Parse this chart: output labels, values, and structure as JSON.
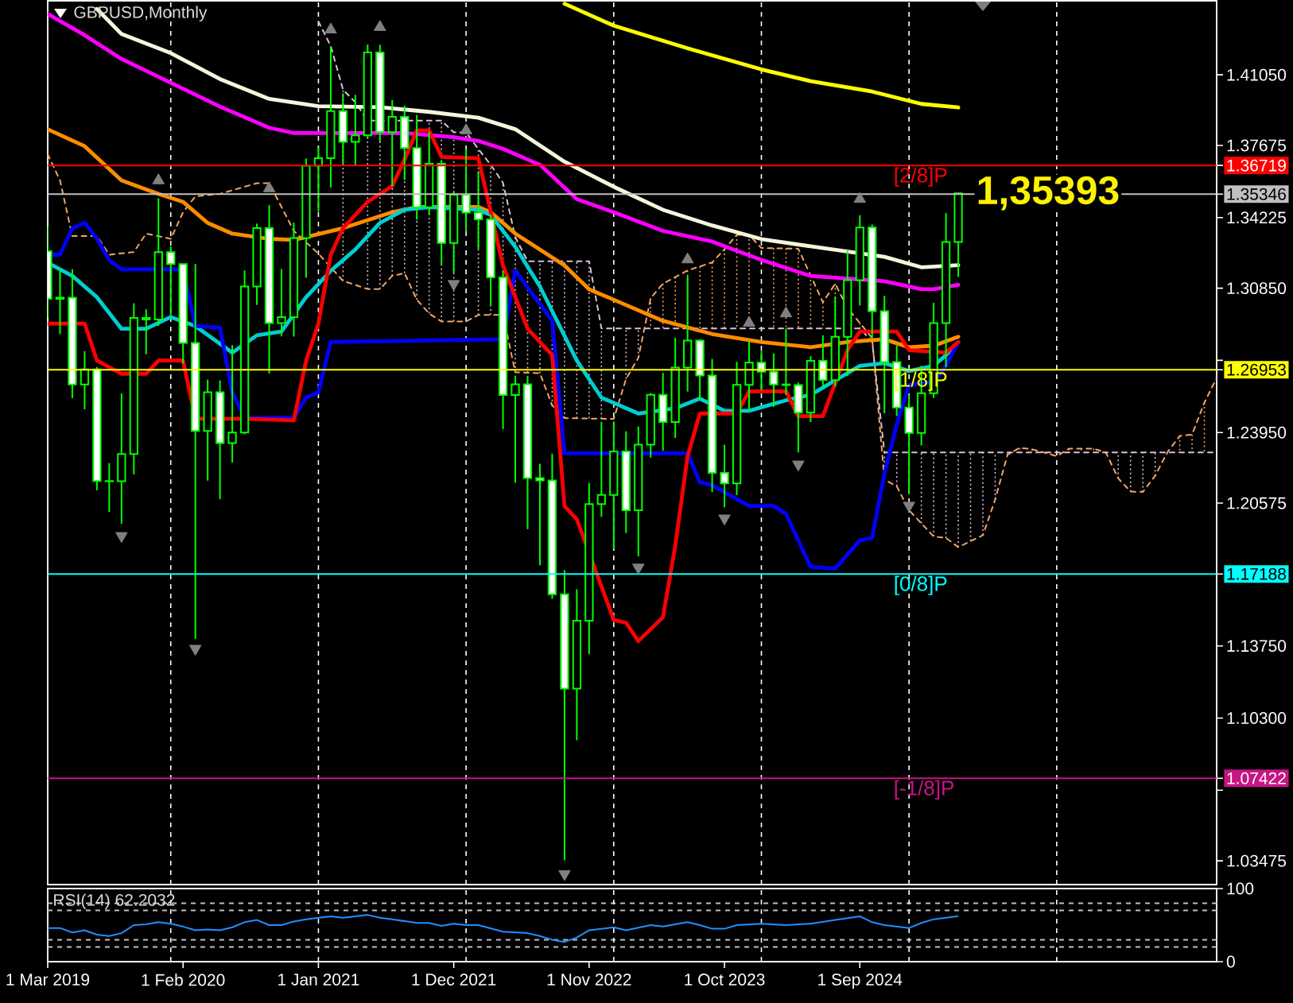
{
  "chart_data": [
    {
      "type": "candlestick",
      "title": "GBPUSD,Monthly",
      "x": [
        "2019-03",
        "2019-04",
        "2019-05",
        "2019-06",
        "2019-07",
        "2019-08",
        "2019-09",
        "2019-10",
        "2019-11",
        "2019-12",
        "2020-01",
        "2020-02",
        "2020-03",
        "2020-04",
        "2020-05",
        "2020-06",
        "2020-07",
        "2020-08",
        "2020-09",
        "2020-10",
        "2020-11",
        "2020-12",
        "2021-01",
        "2021-02",
        "2021-03",
        "2021-04",
        "2021-05",
        "2021-06",
        "2021-07",
        "2021-08",
        "2021-09",
        "2021-10",
        "2021-11",
        "2021-12",
        "2022-01",
        "2022-02",
        "2022-03",
        "2022-04",
        "2022-05",
        "2022-06",
        "2022-07",
        "2022-08",
        "2022-09",
        "2022-10",
        "2022-11",
        "2022-12",
        "2023-01",
        "2023-02",
        "2023-03",
        "2023-04",
        "2023-05",
        "2023-06",
        "2023-07",
        "2023-08",
        "2023-09",
        "2023-10",
        "2023-11",
        "2023-12",
        "2024-01",
        "2024-02",
        "2024-03",
        "2024-04",
        "2024-05",
        "2024-06",
        "2024-07",
        "2024-08",
        "2024-09",
        "2024-10",
        "2024-11",
        "2024-12",
        "2025-01",
        "2025-02",
        "2025-03",
        "2025-04",
        "2025-05"
      ],
      "ohlc": [
        [
          1.3262,
          1.3382,
          1.2945,
          1.3034
        ],
        [
          1.3034,
          1.3177,
          1.2866,
          1.304
        ],
        [
          1.304,
          1.3176,
          1.2559,
          1.2625
        ],
        [
          1.2625,
          1.2784,
          1.2506,
          1.2697
        ],
        [
          1.2697,
          1.2708,
          1.2119,
          1.2163
        ],
        [
          1.2163,
          1.2249,
          1.2015,
          1.2162
        ],
        [
          1.2162,
          1.2582,
          1.1959,
          1.2292
        ],
        [
          1.2292,
          1.3013,
          1.2195,
          1.2943
        ],
        [
          1.2943,
          1.2985,
          1.2769,
          1.2935
        ],
        [
          1.2935,
          1.3515,
          1.2905,
          1.3257
        ],
        [
          1.3257,
          1.3285,
          1.2954,
          1.32
        ],
        [
          1.32,
          1.32,
          1.2725,
          1.2823
        ],
        [
          1.2823,
          1.32,
          1.1409,
          1.2403
        ],
        [
          1.2403,
          1.2648,
          1.2165,
          1.2588
        ],
        [
          1.2588,
          1.2644,
          1.2076,
          1.2345
        ],
        [
          1.2345,
          1.2813,
          1.2252,
          1.2395
        ],
        [
          1.2395,
          1.317,
          1.2387,
          1.3093
        ],
        [
          1.3093,
          1.3394,
          1.3005,
          1.3372
        ],
        [
          1.3372,
          1.3482,
          1.2676,
          1.2918
        ],
        [
          1.2918,
          1.3177,
          1.2855,
          1.2947
        ],
        [
          1.2947,
          1.3399,
          1.2854,
          1.3325
        ],
        [
          1.3325,
          1.3705,
          1.3135,
          1.3671
        ],
        [
          1.3671,
          1.3759,
          1.3451,
          1.3707
        ],
        [
          1.3707,
          1.4241,
          1.3566,
          1.3932
        ],
        [
          1.3932,
          1.4017,
          1.3669,
          1.3785
        ],
        [
          1.3785,
          1.4009,
          1.367,
          1.3816
        ],
        [
          1.3816,
          1.425,
          1.3801,
          1.4212
        ],
        [
          1.4212,
          1.4249,
          1.3787,
          1.3831
        ],
        [
          1.3831,
          1.3984,
          1.3572,
          1.3904
        ],
        [
          1.3904,
          1.3958,
          1.3602,
          1.3755
        ],
        [
          1.3755,
          1.3913,
          1.3412,
          1.3472
        ],
        [
          1.3472,
          1.3834,
          1.3434,
          1.368
        ],
        [
          1.368,
          1.3698,
          1.3195,
          1.3301
        ],
        [
          1.3301,
          1.3548,
          1.316,
          1.3532
        ],
        [
          1.3532,
          1.3749,
          1.3357,
          1.3446
        ],
        [
          1.3446,
          1.3644,
          1.3273,
          1.3414
        ],
        [
          1.3414,
          1.3437,
          1.3,
          1.3137
        ],
        [
          1.3137,
          1.3167,
          1.2411,
          1.2574
        ],
        [
          1.2574,
          1.2667,
          1.2155,
          1.2626
        ],
        [
          1.2626,
          1.2666,
          1.1933,
          1.2177
        ],
        [
          1.2177,
          1.2246,
          1.176,
          1.2166
        ],
        [
          1.2166,
          1.2294,
          1.16,
          1.1622
        ],
        [
          1.1622,
          1.1738,
          1.035,
          1.1171
        ],
        [
          1.1171,
          1.1646,
          1.0924,
          1.1495
        ],
        [
          1.1495,
          1.2154,
          1.1335,
          1.2053
        ],
        [
          1.2053,
          1.2446,
          1.1992,
          1.2097
        ],
        [
          1.2097,
          1.2448,
          1.1841,
          1.2305
        ],
        [
          1.2305,
          1.2401,
          1.1915,
          1.2024
        ],
        [
          1.2024,
          1.2424,
          1.1803,
          1.2337
        ],
        [
          1.2337,
          1.2584,
          1.2275,
          1.2575
        ],
        [
          1.2575,
          1.268,
          1.2308,
          1.2445
        ],
        [
          1.2445,
          1.2848,
          1.2369,
          1.2706
        ],
        [
          1.2706,
          1.3143,
          1.2591,
          1.2835
        ],
        [
          1.2835,
          1.2841,
          1.2548,
          1.2668
        ],
        [
          1.2668,
          1.2747,
          1.211,
          1.2202
        ],
        [
          1.2202,
          1.2337,
          1.2037,
          1.2152
        ],
        [
          1.2152,
          1.2733,
          1.2096,
          1.2623
        ],
        [
          1.2623,
          1.2828,
          1.25,
          1.2729
        ],
        [
          1.2729,
          1.2786,
          1.2597,
          1.2686
        ],
        [
          1.2686,
          1.2773,
          1.2518,
          1.2625
        ],
        [
          1.2625,
          1.2893,
          1.2575,
          1.2622
        ],
        [
          1.2622,
          1.2634,
          1.23,
          1.249
        ],
        [
          1.249,
          1.276,
          1.2445,
          1.2738
        ],
        [
          1.2738,
          1.286,
          1.2612,
          1.2646
        ],
        [
          1.2646,
          1.3044,
          1.2615,
          1.2853
        ],
        [
          1.2853,
          1.3266,
          1.2665,
          1.3123
        ],
        [
          1.3123,
          1.3434,
          1.3002,
          1.3375
        ],
        [
          1.3375,
          1.339,
          1.2844,
          1.2975
        ],
        [
          1.2975,
          1.3048,
          1.2487,
          1.2732
        ],
        [
          1.2732,
          1.2811,
          1.2474,
          1.2515
        ],
        [
          1.2515,
          1.2575,
          1.21,
          1.2393
        ],
        [
          1.2393,
          1.2715,
          1.2333,
          1.2583
        ],
        [
          1.2583,
          1.3015,
          1.256,
          1.2918
        ],
        [
          1.2918,
          1.3444,
          1.2708,
          1.3306
        ],
        [
          1.3306,
          1.3539,
          1.3139,
          1.3539
        ]
      ],
      "color": "#00ff00",
      "colors": [
        "#ffffff",
        "#000000",
        "#ffffff",
        "#000000",
        "#ffffff",
        "#ffffff",
        "#000000",
        "#000000",
        "#ffffff",
        "#000000",
        "#ffffff",
        "#ffffff",
        "#ffffff",
        "#000000",
        "#ffffff",
        "#000000",
        "#000000",
        "#000000",
        "#ffffff",
        "#000000",
        "#000000",
        "#000000",
        "#000000",
        "#000000",
        "#ffffff",
        "#000000",
        "#000000",
        "#ffffff",
        "#000000",
        "#ffffff",
        "#ffffff",
        "#000000",
        "#ffffff",
        "#000000",
        "#ffffff",
        "#ffffff",
        "#ffffff",
        "#ffffff",
        "#000000",
        "#ffffff",
        "#ffffff",
        "#ffffff",
        "#ffffff",
        "#000000",
        "#000000",
        "#000000",
        "#000000",
        "#ffffff",
        "#000000",
        "#000000",
        "#ffffff",
        "#000000",
        "#000000",
        "#ffffff",
        "#ffffff",
        "#ffffff",
        "#000000",
        "#000000",
        "#ffffff",
        "#ffffff",
        "#ffffff",
        "#ffffff",
        "#000000",
        "#ffffff",
        "#000000",
        "#000000",
        "#000000",
        "#ffffff",
        "#ffffff",
        "#ffffff",
        "#ffffff",
        "#000000",
        "#000000",
        "#000000",
        "#000000"
      ],
      "xlim": [
        "2019-03",
        "2027-02"
      ],
      "ylim": [
        1.0234,
        1.4459
      ],
      "yticks": [
        {
          "value": 1.4105,
          "label": "1.41050"
        },
        {
          "value": 1.37675,
          "label": "1.37675"
        },
        {
          "value": 1.36719,
          "label": "1.36719"
        },
        {
          "value": 1.35346,
          "label": "1.35346"
        },
        {
          "value": 1.34225,
          "label": "1.34225"
        },
        {
          "value": 1.3085,
          "label": "1.30850"
        },
        {
          "value": 1.274,
          "label": null
        },
        {
          "value": 1.26953,
          "label": "1.26953"
        },
        {
          "value": 1.2395,
          "label": "1.23950"
        },
        {
          "value": 1.20575,
          "label": "1.20575"
        },
        {
          "value": 1.17188,
          "label": "1.17188"
        },
        {
          "value": 1.1375,
          "label": "1.13750"
        },
        {
          "value": 1.103,
          "label": "1.10300"
        },
        {
          "value": 1.07422,
          "label": "1.07422"
        },
        {
          "value": 1.0685,
          "label": null
        },
        {
          "value": 1.03475,
          "label": "1.03475"
        }
      ],
      "tick_labels": "y",
      "series": [
        {
          "type": "line",
          "color": "#f4a460",
          "line_style": "dashed",
          "x": [
            "2019-03",
            "2019-04",
            "2019-05",
            "2019-07",
            "2019-08",
            "2019-10",
            "2019-11",
            "2020-01",
            "2020-02",
            "2020-03",
            "2020-05",
            "2020-08",
            "2020-09",
            "2020-10",
            "2020-11",
            "2021-01",
            "2021-03",
            "2021-05",
            "2021-06",
            "2021-07",
            "2021-08",
            "2021-09",
            "2021-10",
            "2021-11",
            "2021-12",
            "2022-01",
            "2022-02",
            "2022-03",
            "2022-04",
            "2022-05",
            "2022-06",
            "2022-07",
            "2022-08",
            "2022-09",
            "2022-10",
            "2022-11",
            "2022-12",
            "2023-01",
            "2023-02",
            "2023-03",
            "2023-04",
            "2023-05",
            "2023-06",
            "2023-07",
            "2023-08",
            "2023-09",
            "2023-10",
            "2023-11",
            "2023-12",
            "2024-01",
            "2024-02",
            "2024-03",
            "2024-04",
            "2024-05",
            "2024-06",
            "2024-07",
            "2024-08",
            "2024-09",
            "2024-10",
            "2024-11",
            "2024-12",
            "2025-01",
            "2025-02",
            "2025-03",
            "2025-04",
            "2025-05",
            "2025-06",
            "2025-07",
            "2025-08",
            "2025-09",
            "2025-10",
            "2025-11",
            "2025-12",
            "2026-01",
            "2026-02",
            "2026-03",
            "2026-04",
            "2026-05",
            "2026-06",
            "2026-07",
            "2026-08",
            "2026-09",
            "2026-10",
            "2026-11",
            "2026-12",
            "2027-01",
            "2027-02"
          ],
          "values": [
            1.3726,
            1.36,
            1.3334,
            1.3334,
            1.3245,
            1.3258,
            1.3346,
            1.3321,
            1.3448,
            1.3524,
            1.3536,
            1.3587,
            1.3587,
            1.3473,
            1.3359,
            1.325,
            1.312,
            1.3081,
            1.3081,
            1.3144,
            1.3157,
            1.303,
            1.2964,
            1.2926,
            1.2926,
            1.2926,
            1.2957,
            1.2957,
            1.2957,
            1.2683,
            1.2681,
            1.2679,
            1.2524,
            1.2464,
            1.2463,
            1.2462,
            1.2461,
            1.246,
            1.2651,
            1.2752,
            1.3037,
            1.3107,
            1.3138,
            1.317,
            1.3189,
            1.3208,
            1.3271,
            1.334,
            1.334,
            1.3277,
            1.3276,
            1.3275,
            1.3274,
            1.3146,
            1.3018,
            1.3106,
            1.299,
            1.2919,
            1.2847,
            1.217,
            1.2138,
            1.2024,
            1.1961,
            1.1898,
            1.1891,
            1.1847,
            1.1876,
            1.1904,
            1.2075,
            1.2289,
            1.2322,
            1.2315,
            1.2299,
            1.2282,
            1.2318,
            1.2318,
            1.2318,
            1.2299,
            1.2176,
            1.2113,
            1.2111,
            1.2188,
            1.2301,
            1.2379,
            1.2385,
            1.2538,
            1.2656
          ]
        },
        {
          "type": "line",
          "color": "#d8bfd8",
          "line_style": "dashed",
          "x": [
            "2021-01",
            "2021-02",
            "2021-03",
            "2021-04",
            "2021-05",
            "2021-06",
            "2021-07",
            "2021-08",
            "2021-09",
            "2021-10",
            "2021-11",
            "2021-12",
            "2022-01",
            "2022-02",
            "2022-03",
            "2022-04",
            "2022-05",
            "2022-06",
            "2022-07",
            "2022-08",
            "2022-09",
            "2022-10",
            "2022-11",
            "2022-12",
            "2023-01",
            "2023-02",
            "2023-03",
            "2023-04",
            "2023-05",
            "2023-06",
            "2023-07",
            "2023-08",
            "2023-09",
            "2023-10",
            "2023-11",
            "2023-12",
            "2024-01",
            "2024-02",
            "2024-03",
            "2024-04",
            "2024-05",
            "2024-06",
            "2024-07",
            "2024-08",
            "2024-09",
            "2024-10",
            "2024-11",
            "2024-12",
            "2025-01",
            "2025-02",
            "2025-03",
            "2025-04",
            "2025-05",
            "2025-06",
            "2025-07",
            "2025-08",
            "2025-09",
            "2025-10",
            "2025-11",
            "2025-12",
            "2026-01",
            "2026-02",
            "2026-03",
            "2026-04",
            "2026-05",
            "2026-06",
            "2026-07",
            "2026-08",
            "2026-09",
            "2026-10",
            "2026-11",
            "2026-12",
            "2027-01",
            "2027-02"
          ],
          "values": [
            1.436,
            1.4243,
            1.4034,
            1.3974,
            1.3886,
            1.3886,
            1.3886,
            1.3886,
            1.3886,
            1.3886,
            1.3886,
            1.383,
            1.383,
            1.375,
            1.3675,
            1.3589,
            1.3329,
            1.3214,
            1.3214,
            1.3214,
            1.3214,
            1.3214,
            1.3214,
            1.2893,
            1.2893,
            1.2893,
            1.2893,
            1.2893,
            1.2893,
            1.2893,
            1.2893,
            1.2893,
            1.2893,
            1.2893,
            1.2893,
            1.2893,
            1.2893,
            1.2893,
            1.2893,
            1.2893,
            1.2893,
            1.2893,
            1.2893,
            1.2893,
            1.2893,
            1.283,
            1.23,
            1.23,
            1.23,
            1.23,
            1.23,
            1.23,
            1.23,
            1.23,
            1.23,
            1.23,
            1.23,
            1.23,
            1.23,
            1.23,
            1.23,
            1.23,
            1.23,
            1.23,
            1.23,
            1.23,
            1.23,
            1.23,
            1.23,
            1.23,
            1.23,
            1.23,
            1.23,
            1.23
          ]
        },
        {
          "type": "line",
          "color": "#ffff00",
          "x": [
            "2022-09",
            "2023-01",
            "2023-07",
            "2024-01",
            "2024-05",
            "2024-10",
            "2025-02",
            "2025-05"
          ],
          "values": [
            1.4445,
            1.434,
            1.4232,
            1.4131,
            1.4075,
            1.4025,
            1.3966,
            1.3949
          ]
        },
        {
          "type": "line",
          "color": "#f5f5dc",
          "x": [
            "2019-07",
            "2019-09",
            "2020-01",
            "2020-05",
            "2020-09",
            "2021-01",
            "2021-06",
            "2021-10",
            "2022-02",
            "2022-05",
            "2022-09",
            "2023-01",
            "2023-05",
            "2023-09",
            "2024-01",
            "2024-05",
            "2024-11",
            "2025-02",
            "2025-05"
          ],
          "values": [
            1.442,
            1.43,
            1.4209,
            1.4085,
            1.399,
            1.3955,
            1.395,
            1.3928,
            1.39,
            1.3845,
            1.369,
            1.357,
            1.346,
            1.3385,
            1.332,
            1.3285,
            1.3235,
            1.3185,
            1.3195
          ]
        },
        {
          "type": "line",
          "color": "#ff00ff",
          "x": [
            "2019-03",
            "2019-06",
            "2019-09",
            "2020-01",
            "2020-05",
            "2020-09",
            "2020-11",
            "2021-04",
            "2021-08",
            "2021-12",
            "2022-02",
            "2022-04",
            "2022-07",
            "2022-10",
            "2023-01",
            "2023-05",
            "2023-09",
            "2024-01",
            "2024-05",
            "2024-11",
            "2025-02",
            "2025-03",
            "2025-05"
          ],
          "values": [
            1.4396,
            1.4295,
            1.4181,
            1.4067,
            1.3953,
            1.3852,
            1.3827,
            1.3827,
            1.3827,
            1.3807,
            1.3789,
            1.3751,
            1.3675,
            1.3511,
            1.3448,
            1.3359,
            1.3308,
            1.322,
            1.3144,
            1.3118,
            1.308,
            1.308,
            1.3101
          ]
        },
        {
          "type": "line",
          "color": "#ff8c00",
          "x": [
            "2019-03",
            "2019-06",
            "2019-09",
            "2019-12",
            "2020-02",
            "2020-04",
            "2020-06",
            "2020-09",
            "2020-11",
            "2021-03",
            "2021-07",
            "2021-09",
            "2022-02",
            "2022-03",
            "2022-05",
            "2022-09",
            "2022-11",
            "2023-01",
            "2023-05",
            "2023-09",
            "2024-01",
            "2024-05",
            "2024-08",
            "2024-11",
            "2025-01",
            "2025-03",
            "2025-05"
          ],
          "values": [
            1.3845,
            1.3764,
            1.36,
            1.3536,
            1.3498,
            1.3397,
            1.3346,
            1.3321,
            1.3316,
            1.3372,
            1.3448,
            1.3473,
            1.3473,
            1.3448,
            1.3346,
            1.3194,
            1.308,
            1.303,
            1.2929,
            1.2866,
            1.2828,
            1.2803,
            1.2828,
            1.2841,
            1.2803,
            1.281,
            1.2853
          ]
        },
        {
          "type": "line",
          "color": "#00ced1",
          "x": [
            "2019-03",
            "2019-05",
            "2019-07",
            "2019-09",
            "2019-11",
            "2020-01",
            "2020-03",
            "2020-06",
            "2020-08",
            "2020-10",
            "2020-12",
            "2021-02",
            "2021-04",
            "2021-06",
            "2021-08",
            "2021-10",
            "2022-02",
            "2022-03",
            "2022-05",
            "2022-07",
            "2022-10",
            "2022-12",
            "2023-03",
            "2023-06",
            "2023-08",
            "2023-10",
            "2023-12",
            "2024-03",
            "2024-05",
            "2024-09",
            "2024-11",
            "2025-01",
            "2025-03",
            "2025-04",
            "2025-05"
          ],
          "values": [
            1.3207,
            1.3144,
            1.3042,
            1.2891,
            1.2891,
            1.2947,
            1.2904,
            1.2777,
            1.286,
            1.2878,
            1.3042,
            1.3168,
            1.327,
            1.3397,
            1.346,
            1.3473,
            1.346,
            1.3435,
            1.3283,
            1.3093,
            1.2739,
            1.2562,
            1.2486,
            1.2511,
            1.2557,
            1.2499,
            1.2499,
            1.2549,
            1.2575,
            1.2714,
            1.2727,
            1.2689,
            1.2714,
            1.2765,
            1.2828
          ]
        },
        {
          "type": "line",
          "color": "#0000ff",
          "x": [
            "2019-03",
            "2019-04",
            "2019-05",
            "2019-06",
            "2019-07",
            "2019-08",
            "2019-09",
            "2020-02",
            "2020-03",
            "2020-05",
            "2020-06",
            "2020-07",
            "2020-11",
            "2020-12",
            "2021-01",
            "2021-02",
            "2022-04",
            "2022-05",
            "2022-08",
            "2022-09",
            "2023-07",
            "2023-08",
            "2023-09",
            "2023-12",
            "2024-02",
            "2024-03",
            "2024-05",
            "2024-07",
            "2024-09",
            "2024-10",
            "2024-11",
            "2024-12",
            "2025-01",
            "2025-03",
            "2025-04",
            "2025-05"
          ],
          "values": [
            1.3245,
            1.3245,
            1.3372,
            1.3397,
            1.3321,
            1.322,
            1.3175,
            1.3175,
            1.2904,
            1.2896,
            1.2587,
            1.2466,
            1.2466,
            1.2562,
            1.2587,
            1.2828,
            1.2841,
            1.3169,
            1.2929,
            1.2296,
            1.2296,
            1.2157,
            1.2144,
            1.2044,
            1.2044,
            1.2006,
            1.1752,
            1.1745,
            1.1879,
            1.1892,
            1.2198,
            1.2433,
            1.2623,
            1.2638,
            1.2714,
            1.2828
          ]
        },
        {
          "type": "line",
          "color": "#ff0000",
          "x": [
            "2019-03",
            "2019-06",
            "2019-07",
            "2019-09",
            "2019-11",
            "2019-12",
            "2020-02",
            "2020-03",
            "2020-07",
            "2020-11",
            "2020-12",
            "2021-01",
            "2021-02",
            "2021-03",
            "2021-05",
            "2021-07",
            "2021-08",
            "2021-09",
            "2021-10",
            "2021-11",
            "2022-02",
            "2022-04",
            "2022-06",
            "2022-08",
            "2022-09",
            "2022-10",
            "2023-01",
            "2023-02",
            "2023-03",
            "2023-05",
            "2023-06",
            "2023-07",
            "2023-08",
            "2023-11",
            "2023-12",
            "2024-03",
            "2024-04",
            "2024-06",
            "2024-08",
            "2024-09",
            "2024-12",
            "2025-01",
            "2025-04",
            "2025-05"
          ],
          "values": [
            1.2916,
            1.2916,
            1.2739,
            1.2676,
            1.2676,
            1.2739,
            1.2739,
            1.2461,
            1.2461,
            1.2453,
            1.2739,
            1.2916,
            1.3245,
            1.3372,
            1.3498,
            1.3574,
            1.37,
            1.3839,
            1.3839,
            1.3713,
            1.3706,
            1.3194,
            1.2891,
            1.2765,
            1.2043,
            1.198,
            1.1499,
            1.1486,
            1.1398,
            1.1512,
            1.1854,
            1.2281,
            1.2486,
            1.2486,
            1.2592,
            1.2592,
            1.2473,
            1.2473,
            1.2789,
            1.2878,
            1.2878,
            1.2789,
            1.2777,
            1.2828
          ]
        },
        {
          "type": "scatter",
          "marker": "triangle",
          "color": "#808080",
          "x": [
            "2019-12",
            "2020-09",
            "2021-02",
            "2021-06",
            "2022-01",
            "2023-07",
            "2023-12",
            "2024-03",
            "2024-09"
          ],
          "values": [
            1.36,
            1.3562,
            1.4321,
            1.4333,
            1.3839,
            1.3222,
            1.2919,
            1.2964,
            1.3511
          ]
        },
        {
          "type": "scatter",
          "marker": "triangle",
          "color": "#808080",
          "x": [
            "2019-09",
            "2020-03",
            "2021-12",
            "2022-09",
            "2023-03",
            "2023-10",
            "2024-04",
            "2025-01"
          ],
          "values": [
            1.1901,
            1.1362,
            1.3106,
            1.0285,
            1.175,
            1.1985,
            1.2243,
            1.2046
          ]
        }
      ],
      "ref_lines": [
        {
          "axis": "x",
          "value": "2020-01",
          "color": "#ffffff",
          "line_style": "dashed"
        },
        {
          "axis": "x",
          "value": "2021-01",
          "color": "#ffffff",
          "line_style": "dashed"
        },
        {
          "axis": "x",
          "value": "2022-01",
          "color": "#ffffff",
          "line_style": "dashed"
        },
        {
          "axis": "x",
          "value": "2023-01",
          "color": "#ffffff",
          "line_style": "dashed"
        },
        {
          "axis": "x",
          "value": "2024-01",
          "color": "#ffffff",
          "line_style": "dashed"
        },
        {
          "axis": "x",
          "value": "2025-01",
          "color": "#ffffff",
          "line_style": "dashed"
        },
        {
          "axis": "x",
          "value": "2026-01",
          "color": "#ffffff",
          "line_style": "dashed"
        },
        {
          "axis": "y",
          "value": 1.36719,
          "label": "[2/8]P",
          "color": "#ff0000"
        },
        {
          "axis": "y",
          "value": 1.35346,
          "color": "#c0c0c0"
        },
        {
          "axis": "y",
          "value": 1.26953,
          "label": "[1/8]P",
          "color": "#ffff00"
        },
        {
          "axis": "y",
          "value": 1.17188,
          "label": "[0/8]P",
          "color": "#00ffff"
        },
        {
          "axis": "y",
          "value": 1.07422,
          "label": "[-1/8]P",
          "color": "#c71585"
        }
      ],
      "annotations": [
        {
          "text": "1,35393",
          "x": "2025-05",
          "y": 1.35393
        }
      ]
    },
    {
      "type": "line",
      "title": "RSI(14) 62.2032",
      "color": "#1e90ff",
      "x": [
        "2019-03",
        "2019-04",
        "2019-05",
        "2019-06",
        "2019-07",
        "2019-08",
        "2019-09",
        "2019-10",
        "2019-11",
        "2019-12",
        "2020-01",
        "2020-02",
        "2020-03",
        "2020-04",
        "2020-05",
        "2020-06",
        "2020-07",
        "2020-08",
        "2020-09",
        "2020-10",
        "2020-11",
        "2020-12",
        "2021-01",
        "2021-02",
        "2021-03",
        "2021-04",
        "2021-05",
        "2021-06",
        "2021-07",
        "2021-09",
        "2021-10",
        "2021-11",
        "2021-12",
        "2022-01",
        "2022-02",
        "2022-04",
        "2022-06",
        "2022-07",
        "2022-08",
        "2022-09",
        "2022-10",
        "2022-11",
        "2023-01",
        "2023-02",
        "2023-04",
        "2023-05",
        "2023-07",
        "2023-08",
        "2023-09",
        "2023-10",
        "2023-11",
        "2024-01",
        "2024-03",
        "2024-05",
        "2024-07",
        "2024-09",
        "2024-10",
        "2024-11",
        "2024-12",
        "2025-01",
        "2025-02",
        "2025-03",
        "2025-04",
        "2025-05"
      ],
      "values": [
        46,
        46,
        40,
        43,
        37,
        35,
        39,
        50,
        51,
        54,
        52,
        48,
        43,
        44,
        43,
        47,
        54,
        57,
        50,
        50,
        55,
        58,
        60,
        62,
        60,
        62,
        64,
        60,
        58,
        53,
        53,
        49,
        52,
        50,
        50,
        41,
        39,
        35,
        30,
        27,
        33,
        43,
        47,
        43,
        50,
        48,
        54,
        50,
        45,
        45,
        50,
        52,
        50,
        52,
        57,
        62,
        54,
        50,
        48,
        46,
        53,
        58,
        60,
        62.2032
      ],
      "xlim": [
        "2019-03",
        "2027-02"
      ],
      "ylim": [
        0,
        100
      ],
      "yticks": [
        0,
        100
      ],
      "xticks": [
        {
          "value": "2019-03",
          "label": "1 Mar 2019"
        },
        {
          "value": "2020-02",
          "label": "1 Feb 2020"
        },
        {
          "value": "2021-01",
          "label": "1 Jan 2021"
        },
        {
          "value": "2021-12",
          "label": "1 Dec 2021"
        },
        {
          "value": "2022-11",
          "label": "1 Nov 2022"
        },
        {
          "value": "2023-10",
          "label": "1 Oct 2023"
        },
        {
          "value": "2024-09",
          "label": "1 Sep 2024"
        }
      ],
      "ref_lines": [
        {
          "axis": "y",
          "value": 80,
          "color": "#c0c0c0",
          "line_style": "dashed"
        },
        {
          "axis": "y",
          "value": 70,
          "color": "#c0c0c0",
          "line_style": "dashed"
        },
        {
          "axis": "y",
          "value": 30,
          "color": "#c0c0c0",
          "line_style": "dashed"
        },
        {
          "axis": "y",
          "value": 20,
          "color": "#c0c0c0",
          "line_style": "dashed"
        },
        {
          "axis": "x",
          "value": "2020-01",
          "color": "#ffffff",
          "line_style": "dashed"
        },
        {
          "axis": "x",
          "value": "2021-01",
          "color": "#ffffff",
          "line_style": "dashed"
        },
        {
          "axis": "x",
          "value": "2022-01",
          "color": "#ffffff",
          "line_style": "dashed"
        },
        {
          "axis": "x",
          "value": "2023-01",
          "color": "#ffffff",
          "line_style": "dashed"
        },
        {
          "axis": "x",
          "value": "2024-01",
          "color": "#ffffff",
          "line_style": "dashed"
        },
        {
          "axis": "x",
          "value": "2025-01",
          "color": "#ffffff",
          "line_style": "dashed"
        },
        {
          "axis": "x",
          "value": "2026-01",
          "color": "#ffffff",
          "line_style": "dashed"
        }
      ]
    }
  ]
}
